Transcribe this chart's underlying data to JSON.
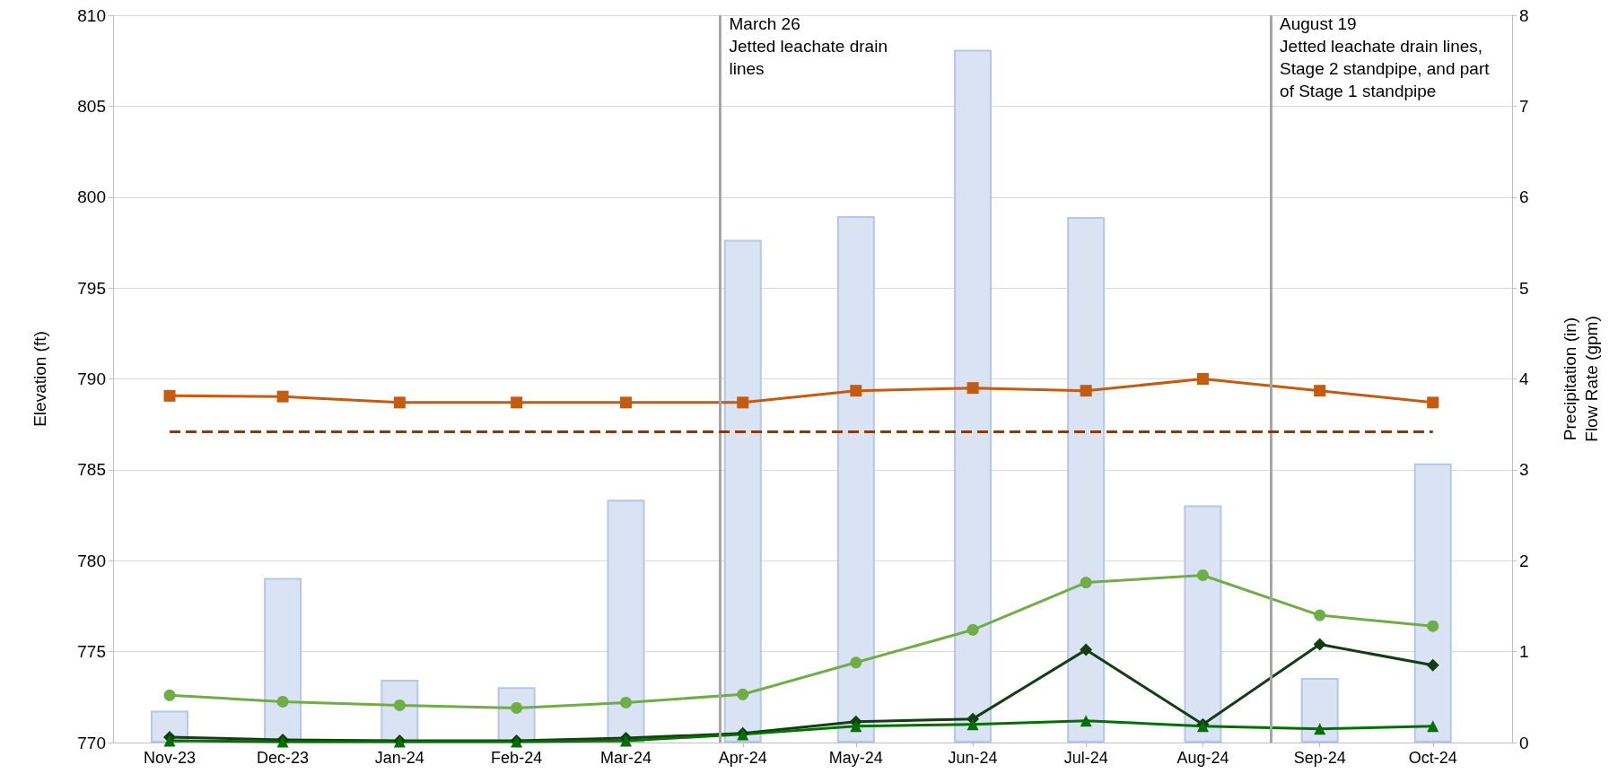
{
  "chart_data": {
    "type": "line",
    "ylabel": "Elevation (ft)",
    "y2label": "Precipitation (in)\nFlow Rate (gpm)",
    "x": [
      "2023-11",
      "2023-12",
      "2024-01",
      "2024-02",
      "2024-03",
      "2024-04",
      "2024-05",
      "2024-06",
      "2024-07",
      "2024-08",
      "2024-09",
      "2024-10"
    ],
    "xlim": [
      "2023-10-17",
      "2024-10-22"
    ],
    "xticks": [
      {
        "value": "2023-11",
        "label": "Nov-23"
      },
      {
        "value": "2023-12",
        "label": "Dec-23"
      },
      {
        "value": "2024-01",
        "label": "Jan-24"
      },
      {
        "value": "2024-02",
        "label": "Feb-24"
      },
      {
        "value": "2024-03",
        "label": "Mar-24"
      },
      {
        "value": "2024-04",
        "label": "Apr-24"
      },
      {
        "value": "2024-05",
        "label": "May-24"
      },
      {
        "value": "2024-06",
        "label": "Jun-24"
      },
      {
        "value": "2024-07",
        "label": "Jul-24"
      },
      {
        "value": "2024-08",
        "label": "Aug-24"
      },
      {
        "value": "2024-09",
        "label": "Sep-24"
      },
      {
        "value": "2024-10",
        "label": "Oct-24"
      }
    ],
    "ylim": [
      770,
      810
    ],
    "yticks": [
      770,
      775,
      780,
      785,
      790,
      795,
      800,
      805,
      810
    ],
    "y2lim": [
      0,
      8
    ],
    "y2ticks": [
      0,
      1,
      2,
      3,
      4,
      5,
      6,
      7,
      8
    ],
    "grid": "y",
    "series": [
      {
        "type": "bar",
        "axis": "y2",
        "color": "#dae3f3",
        "values": [
          0.35,
          1.81,
          0.69,
          0.61,
          2.67,
          5.53,
          5.79,
          7.62,
          5.78,
          2.61,
          0.71,
          3.07
        ]
      },
      {
        "color": "#c55a11",
        "marker": "square",
        "values": [
          789.07,
          789.03,
          788.7,
          788.7,
          788.7,
          788.7,
          789.35,
          789.5,
          789.35,
          790.0,
          789.35,
          788.7
        ]
      },
      {
        "axis": "y2",
        "color": "#70ad47",
        "marker": "circle",
        "values": [
          0.52,
          0.45,
          0.41,
          0.38,
          0.44,
          0.53,
          0.88,
          1.24,
          1.76,
          1.84,
          1.4,
          1.28
        ]
      },
      {
        "axis": "y2",
        "color": "#133d13",
        "marker": "diamond",
        "values": [
          0.06,
          0.03,
          0.02,
          0.02,
          0.05,
          0.1,
          0.23,
          0.26,
          1.02,
          0.2,
          1.08,
          0.85
        ]
      },
      {
        "axis": "y2",
        "color": "#007000",
        "marker": "triangle",
        "values": [
          0.02,
          0.01,
          0.01,
          0.01,
          0.02,
          0.09,
          0.18,
          0.2,
          0.24,
          0.18,
          0.15,
          0.18
        ]
      }
    ],
    "ref_lines": [
      {
        "axis": "y",
        "value": 787.1,
        "color": "#843c0c",
        "line_style": "dashed"
      },
      {
        "axis": "x",
        "value": "2024-03-26",
        "color": "#a6a6a6",
        "label": "March 26\nJetted leachate drain\nlines"
      },
      {
        "axis": "x",
        "value": "2024-08-19",
        "color": "#a6a6a6",
        "label": "August 19\nJetted leachate drain lines,\nStage 2 standpipe, and part\nof Stage 1 standpipe"
      }
    ]
  }
}
